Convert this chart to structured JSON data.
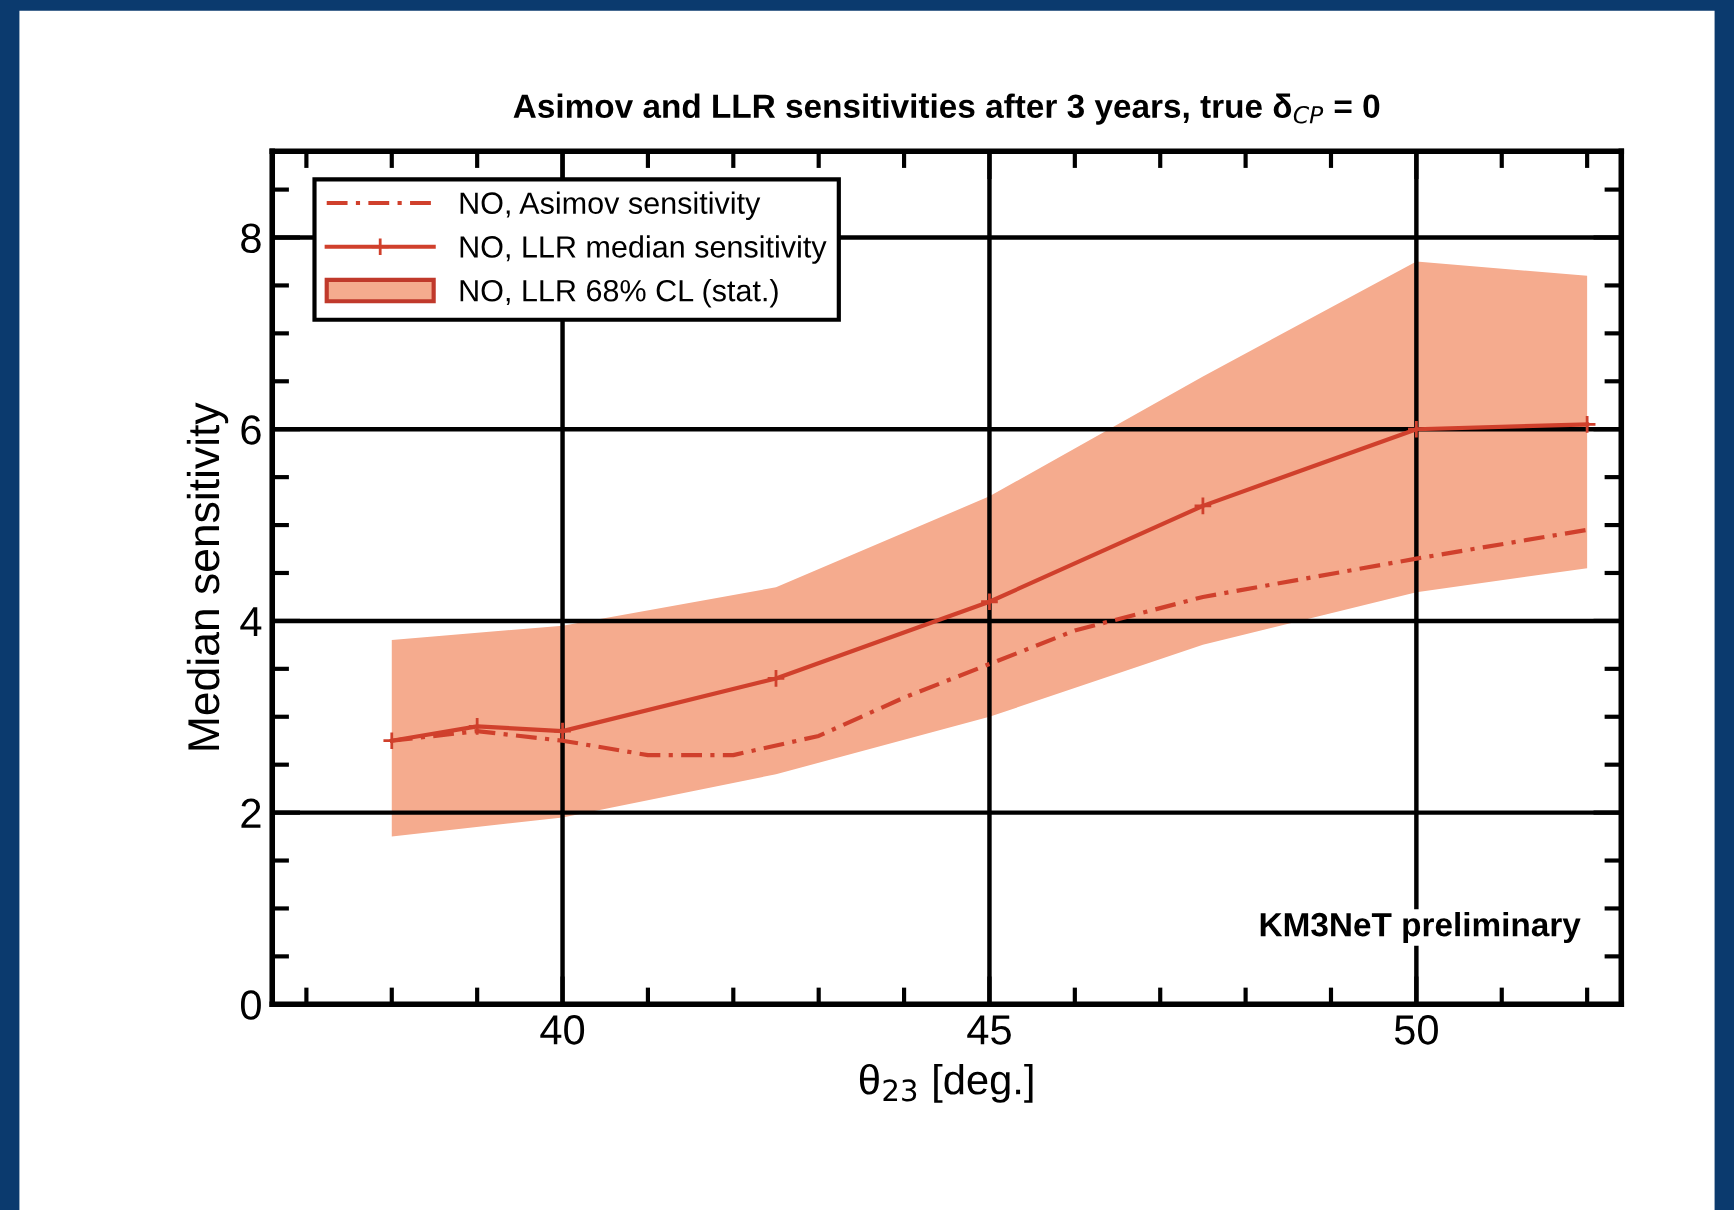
{
  "chart_data": {
    "type": "line",
    "title": "Asimov and LLR sensitivities after 3 years, true δ$_{CP}$ = 0",
    "xlabel": "θ$_{23}$ [deg.]",
    "ylabel": "Median sensitivity",
    "xlim": [
      36.6,
      52.4
    ],
    "ylim": [
      0,
      8.9
    ],
    "xticks": [
      40,
      45,
      50,
      {
        "value": 37,
        "label": null
      },
      {
        "value": 38,
        "label": null
      },
      {
        "value": 39,
        "label": null
      },
      {
        "value": 41,
        "label": null
      },
      {
        "value": 42,
        "label": null
      },
      {
        "value": 43,
        "label": null
      },
      {
        "value": 44,
        "label": null
      },
      {
        "value": 46,
        "label": null
      },
      {
        "value": 47,
        "label": null
      },
      {
        "value": 48,
        "label": null
      },
      {
        "value": 49,
        "label": null
      },
      {
        "value": 51,
        "label": null
      },
      {
        "value": 52,
        "label": null
      }
    ],
    "yticks": [
      0,
      2,
      4,
      6,
      8,
      {
        "value": 0.5,
        "label": null
      },
      {
        "value": 1,
        "label": null
      },
      {
        "value": 1.5,
        "label": null
      },
      {
        "value": 2.5,
        "label": null
      },
      {
        "value": 3,
        "label": null
      },
      {
        "value": 3.5,
        "label": null
      },
      {
        "value": 4.5,
        "label": null
      },
      {
        "value": 5,
        "label": null
      },
      {
        "value": 5.5,
        "label": null
      },
      {
        "value": 6.5,
        "label": null
      },
      {
        "value": 7,
        "label": null
      },
      {
        "value": 7.5,
        "label": null
      },
      {
        "value": 8.5,
        "label": null
      }
    ],
    "grid": true,
    "legend": "top left",
    "annotations": [
      "KM3NeT preliminary"
    ],
    "series": [
      {
        "name": "NO, Asimov sensitivity",
        "line_style": "dashed",
        "marker": "none",
        "color": "#d0402c",
        "x": [
          38,
          39,
          40,
          41,
          42,
          43,
          44,
          45,
          46,
          47.5,
          50,
          52
        ],
        "values": [
          2.75,
          2.85,
          2.75,
          2.6,
          2.6,
          2.8,
          3.2,
          3.55,
          3.9,
          4.25,
          4.65,
          4.95
        ]
      },
      {
        "name": "NO, LLR median sensitivity",
        "line_style": "solid",
        "marker": "cross",
        "color": "#d0402c",
        "x": [
          38,
          39,
          40,
          42.5,
          45,
          47.5,
          50,
          52
        ],
        "values": [
          2.75,
          2.9,
          2.85,
          3.4,
          4.2,
          5.2,
          6.0,
          6.05
        ]
      },
      {
        "name": "NO, LLR 68% CL (stat.)",
        "color": "#f5ab8e",
        "x": [
          38,
          40,
          42.5,
          45,
          47.5,
          50,
          52
        ],
        "values": [
          null,
          null,
          null,
          null,
          null,
          null,
          null
        ],
        "lower": [
          1.75,
          1.95,
          2.4,
          3.0,
          3.75,
          4.3,
          4.55
        ],
        "upper": [
          3.8,
          3.95,
          4.35,
          5.3,
          6.55,
          7.75,
          7.6
        ]
      }
    ]
  }
}
